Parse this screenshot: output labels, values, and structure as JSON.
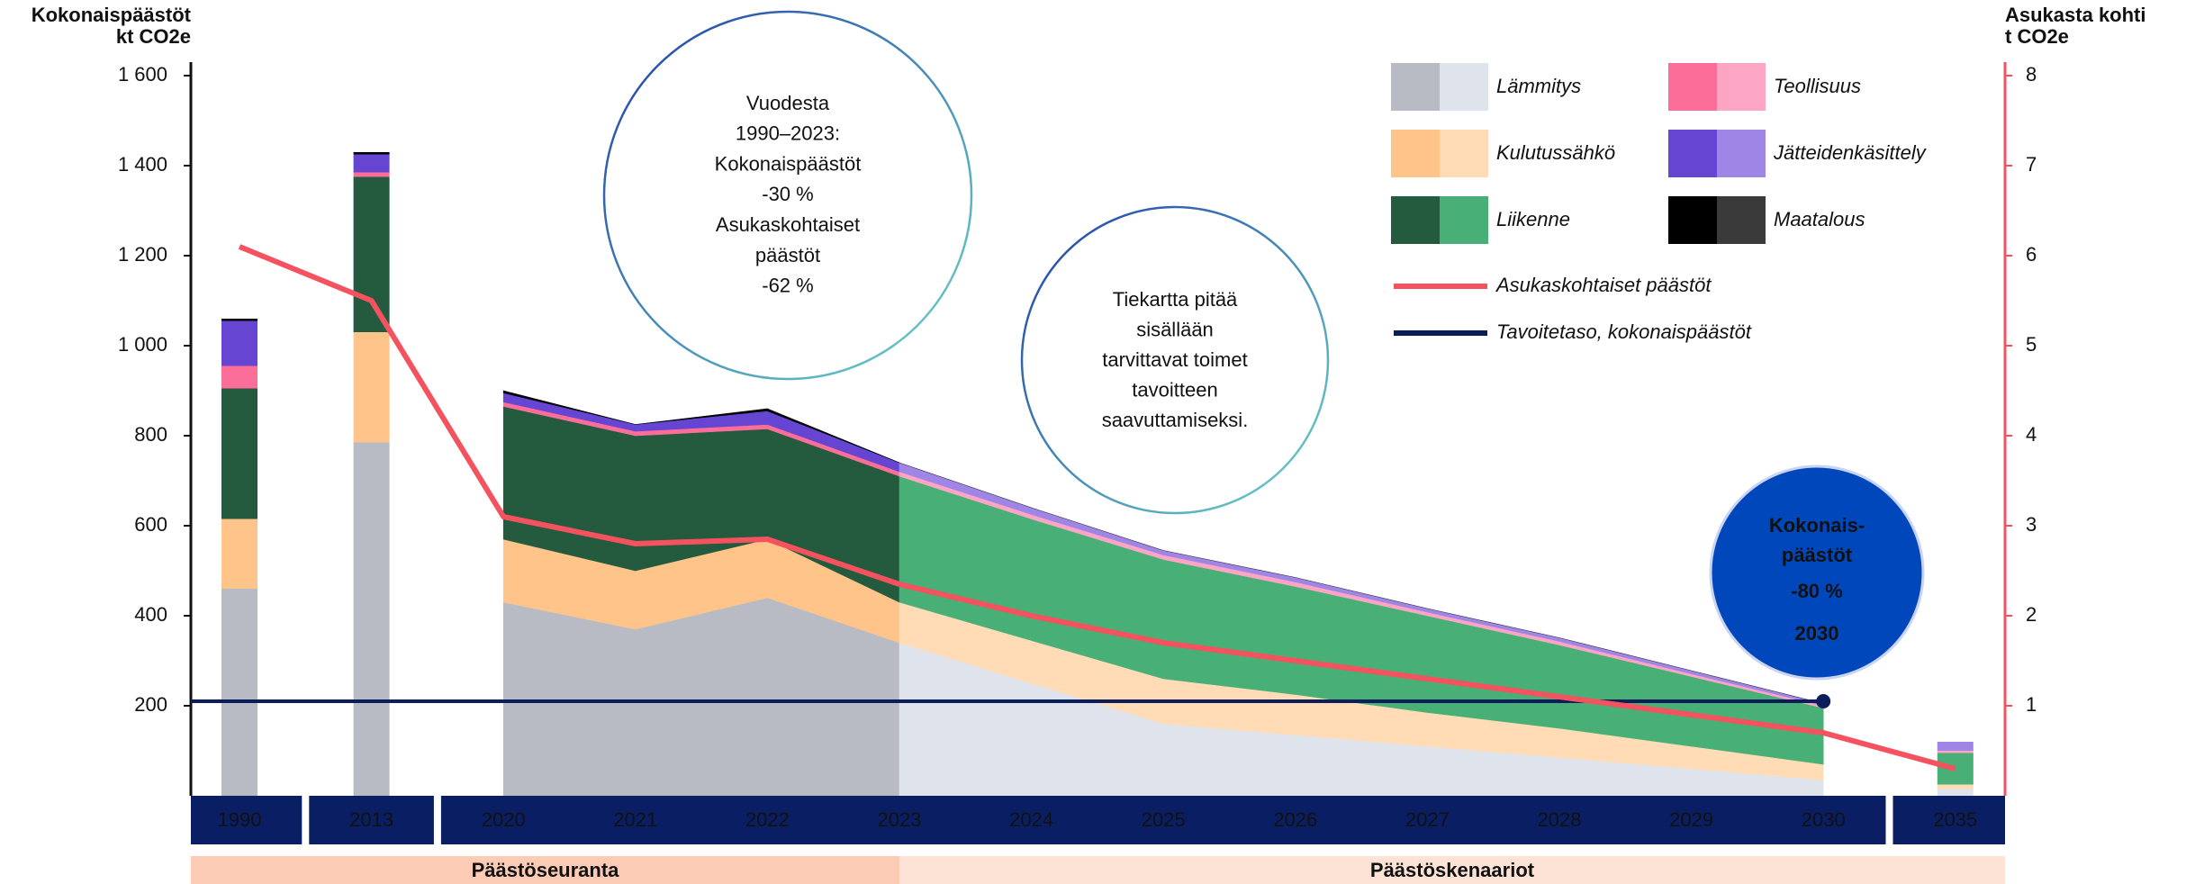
{
  "chart_data": {
    "type": "stacked_area",
    "y_label": [
      "Kokonaispäästöt",
      "kt CO2e"
    ],
    "y2_label": [
      "Asukasta kohti",
      "t CO2e"
    ],
    "categories": [
      "1990",
      "2013",
      "2020",
      "2021",
      "2022",
      "2023",
      "2024",
      "2025",
      "2026",
      "2027",
      "2028",
      "2029",
      "2030",
      "2035"
    ],
    "series": [
      {
        "name": "Lämmitys",
        "colors": [
          "#b8bbc4",
          "#dfe4ec"
        ],
        "values": [
          460,
          785,
          430,
          370,
          440,
          340,
          250,
          160,
          135,
          110,
          85,
          60,
          35,
          15
        ]
      },
      {
        "name": "Kulutussähkö",
        "colors": [
          "#ffc48a",
          "#ffdcb5"
        ],
        "values": [
          155,
          245,
          140,
          130,
          130,
          90,
          95,
          100,
          90,
          75,
          65,
          50,
          35,
          10
        ]
      },
      {
        "name": "Liikenne",
        "colors": [
          "#245a3e",
          "#48b077"
        ],
        "values": [
          290,
          345,
          295,
          300,
          245,
          280,
          270,
          265,
          240,
          215,
          185,
          155,
          125,
          70
        ]
      },
      {
        "name": "Teollisuus",
        "colors": [
          "#fb6e9a",
          "#fda5c5"
        ],
        "values": [
          50,
          10,
          10,
          10,
          10,
          10,
          10,
          10,
          10,
          8,
          8,
          6,
          5,
          5
        ]
      },
      {
        "name": "Jätteidenkäsittely",
        "colors": [
          "#6545d1",
          "#9e85e6"
        ],
        "values": [
          100,
          40,
          20,
          15,
          30,
          20,
          15,
          10,
          10,
          8,
          8,
          7,
          5,
          20
        ]
      },
      {
        "name": "Maatalous",
        "colors": [
          "#000000",
          "#3a3a3a"
        ],
        "values": [
          5,
          5,
          5,
          0,
          5,
          0,
          0,
          0,
          0,
          0,
          0,
          0,
          0,
          0
        ]
      },
      {
        "name": "Asukaskohtaiset päästöt",
        "color": "#f4525f",
        "axis": "y2",
        "values": [
          6.1,
          5.5,
          3.1,
          2.8,
          2.85,
          2.35,
          2.0,
          1.7,
          1.5,
          1.3,
          1.1,
          0.9,
          0.7,
          0.3
        ]
      }
    ],
    "target": {
      "name": "Tavoitetaso, kokonaispäästöt",
      "color": "#0b1e5b",
      "value": 210,
      "until": "2030"
    },
    "periods": [
      {
        "label": "Päästöseuranta",
        "from": "1990",
        "color": "#fbcbb5"
      },
      {
        "label": "Päästöskenaariot",
        "from": "2023",
        "color": "#fde3d6"
      }
    ],
    "annotations": [
      {
        "lines": [
          "Vuodesta",
          "1990–2023:",
          "Kokonaispäästöt",
          "-30 %",
          "Asukaskohtaiset",
          "päästöt",
          "-62 %"
        ]
      },
      {
        "lines": [
          "Tiekartta pitää",
          "sisällään",
          "tarvittavat toimet",
          "tavoitteen",
          "saavuttamiseksi."
        ]
      },
      {
        "lines": [
          "Kokonais-",
          "päästöt",
          "-80 %",
          "2030"
        ]
      }
    ],
    "ylim": [
      0,
      1630
    ],
    "yticks": [
      200,
      400,
      600,
      800,
      {
        "value": 1000,
        "label": "1 000"
      },
      {
        "value": 1200,
        "label": "1 200"
      },
      {
        "value": 1400,
        "label": "1 400"
      },
      {
        "value": 1600,
        "label": "1 600"
      }
    ],
    "y2lim": [
      0,
      8.15
    ],
    "y2ticks": [
      1,
      2,
      3,
      4,
      5,
      6,
      7,
      8
    ]
  }
}
